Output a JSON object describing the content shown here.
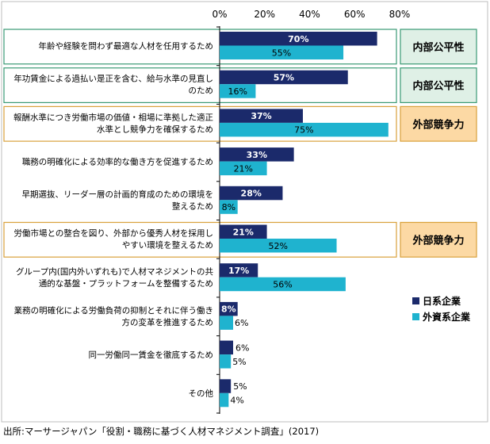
{
  "chart_data": {
    "type": "bar",
    "orientation": "horizontal",
    "xlim": [
      0,
      80
    ],
    "x_ticks": [
      "0%",
      "20%",
      "40%",
      "60%",
      "80%"
    ],
    "categories": [
      [
        "年齢や経験を問わず最適な人材を任用するため"
      ],
      [
        "年功賃金による過払い是正を含む、給与水準の見直し",
        "のため"
      ],
      [
        "報酬水準につき労働市場の価値・相場に準拠した適正",
        "水準とし競争力を確保するため"
      ],
      [
        "職務の明確化による効率的な働き方を促進するため"
      ],
      [
        "早期選抜、リーダー層の計画的育成のための環境を",
        "整えるため"
      ],
      [
        "労働市場との整合を図り、外部から優秀人材を採用し",
        "やすい環境を整えるため"
      ],
      [
        "グループ内(国内外いずれも)で人材マネジメントの共",
        "通的な基盤・プラットフォームを整備するため"
      ],
      [
        "業務の明確化による労働負荷の抑制とそれに伴う働き",
        "方の変革を推進するため"
      ],
      [
        "同一労働同一賃金を徹底するため"
      ],
      [
        "その他"
      ]
    ],
    "series": [
      {
        "name": "日系企業",
        "color": "#1b2a6b",
        "values": [
          70,
          57,
          37,
          33,
          28,
          21,
          17,
          8,
          6,
          5
        ]
      },
      {
        "name": "外資系企業",
        "color": "#1fb3cf",
        "values": [
          55,
          16,
          75,
          21,
          8,
          52,
          56,
          6,
          5,
          4
        ]
      }
    ],
    "value_labels": {
      "japanese": [
        "70%",
        "57%",
        "37%",
        "33%",
        "28%",
        "21%",
        "17%",
        "8%",
        "6%",
        "5%"
      ],
      "foreign": [
        "55%",
        "16%",
        "75%",
        "21%",
        "8%",
        "52%",
        "56%",
        "6%",
        "5%",
        "4%"
      ]
    },
    "highlight_tags": [
      {
        "row": 0,
        "label": "内部公平性",
        "type": "internal"
      },
      {
        "row": 1,
        "label": "内部公平性",
        "type": "internal"
      },
      {
        "row": 2,
        "label": "外部競争力",
        "type": "external"
      },
      {
        "row": 5,
        "label": "外部競争力",
        "type": "external"
      }
    ],
    "tag_colors": {
      "internal": {
        "fill": "#dff0e6",
        "border": "#3a9a74"
      },
      "external": {
        "fill": "#fcd9a4",
        "border": "#d9a13b"
      }
    },
    "legend_position": "right"
  },
  "source_text": "出所:マーサージャパン「役割・職務に基づく人材マネジメント調査」(2017)"
}
